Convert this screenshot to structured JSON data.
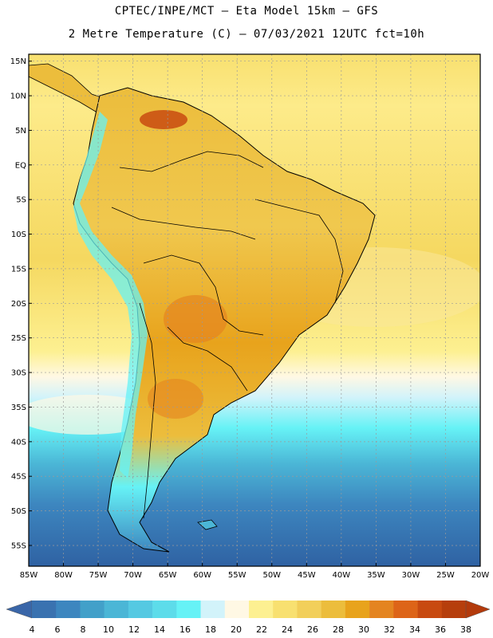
{
  "header": {
    "title_line1": "CPTEC/INPE/MCT –  Eta Model 15km – GFS",
    "title_line2": "2 Metre Temperature (C) – 07/03/2021 12UTC fct=10h"
  },
  "map": {
    "variable": "2 Metre Temperature",
    "units": "C",
    "lon_range": [
      -85,
      -20
    ],
    "lat_range": [
      -58,
      16
    ],
    "lat_ticks": [
      "15N",
      "10N",
      "5N",
      "EQ",
      "5S",
      "10S",
      "15S",
      "20S",
      "25S",
      "30S",
      "35S",
      "40S",
      "45S",
      "50S",
      "55S"
    ],
    "lon_ticks": [
      "85W",
      "80W",
      "75W",
      "70W",
      "65W",
      "60W",
      "55W",
      "50W",
      "45W",
      "40W",
      "35W",
      "30W",
      "25W",
      "20W"
    ]
  },
  "colorbar": {
    "labels": [
      "4",
      "6",
      "8",
      "10",
      "12",
      "14",
      "16",
      "18",
      "20",
      "22",
      "24",
      "26",
      "28",
      "30",
      "32",
      "34",
      "36",
      "38"
    ],
    "colors": [
      "#3a72b0",
      "#3d86bf",
      "#42a0c9",
      "#4bb6d6",
      "#55c9e2",
      "#5ddcea",
      "#66f2f6",
      "#d2f3fa",
      "#fff8e4",
      "#fdf091",
      "#f8e070",
      "#f2cf5a",
      "#ecbd3c",
      "#e8a31c",
      "#e48420",
      "#dd6418",
      "#c84a10",
      "#b63e0c"
    ],
    "low_arrow_color": "#3a66a8",
    "high_arrow_color": "#b33a0c"
  }
}
